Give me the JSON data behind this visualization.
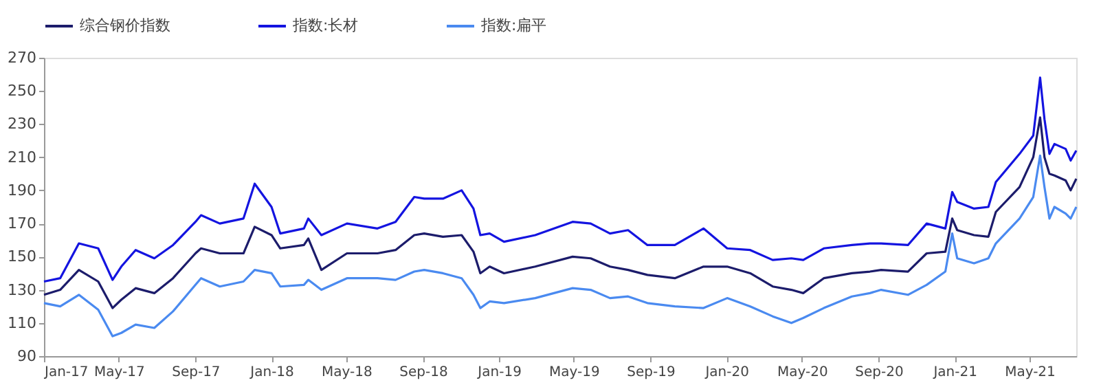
{
  "chart_data": {
    "type": "line",
    "x": [
      "2017-01-01",
      "2017-01-27",
      "2017-02-26",
      "2017-03-29",
      "2017-04-21",
      "2017-05-05",
      "2017-05-28",
      "2017-06-27",
      "2017-07-27",
      "2017-09-01",
      "2017-09-10",
      "2017-10-10",
      "2017-11-17",
      "2017-12-05",
      "2018-01-01",
      "2018-01-15",
      "2018-02-22",
      "2018-03-01",
      "2018-03-22",
      "2018-05-02",
      "2018-06-20",
      "2018-07-19",
      "2018-08-18",
      "2018-09-03",
      "2018-10-03",
      "2018-11-02",
      "2018-11-21",
      "2018-12-02",
      "2018-12-17",
      "2019-01-09",
      "2019-02-28",
      "2019-04-29",
      "2019-05-28",
      "2019-06-28",
      "2019-07-27",
      "2019-08-27",
      "2019-10-10",
      "2019-11-25",
      "2020-01-02",
      "2020-02-08",
      "2020-03-15",
      "2020-04-14",
      "2020-05-03",
      "2020-06-05",
      "2020-07-20",
      "2020-08-18",
      "2020-09-05",
      "2020-10-18",
      "2020-11-17",
      "2020-12-17",
      "2020-12-28",
      "2021-01-05",
      "2021-02-01",
      "2021-02-24",
      "2021-03-08",
      "2021-04-15",
      "2021-05-07",
      "2021-05-18",
      "2021-05-25",
      "2021-06-02",
      "2021-06-10",
      "2021-06-28",
      "2021-07-06",
      "2021-07-15"
    ],
    "series": [
      {
        "name": "综合钢价指数",
        "color": "#1c1c6b",
        "values": [
          127,
          130,
          142,
          135,
          119,
          124,
          131,
          128,
          137,
          152,
          155,
          152,
          152,
          168,
          163,
          155,
          157,
          161,
          142,
          152,
          152,
          154,
          163,
          164,
          162,
          163,
          153,
          140,
          144,
          140,
          144,
          150,
          149,
          144,
          142,
          139,
          137,
          144,
          144,
          140,
          132,
          130,
          128,
          137,
          140,
          141,
          142,
          141,
          152,
          153,
          173,
          166,
          163,
          162,
          177,
          192,
          210,
          234,
          210,
          200,
          199,
          196,
          190,
          197
        ]
      },
      {
        "name": "指数:长材",
        "color": "#1414e0",
        "values": [
          135,
          137,
          158,
          155,
          136,
          144,
          154,
          149,
          157,
          171,
          175,
          170,
          173,
          194,
          180,
          164,
          167,
          173,
          163,
          170,
          167,
          171,
          186,
          185,
          185,
          190,
          179,
          163,
          164,
          159,
          163,
          171,
          170,
          164,
          166,
          157,
          157,
          167,
          155,
          154,
          148,
          149,
          148,
          155,
          157,
          158,
          158,
          157,
          170,
          167,
          189,
          183,
          179,
          180,
          195,
          212,
          223,
          258,
          233,
          212,
          218,
          215,
          208,
          214
        ]
      },
      {
        "name": "指数:扁平",
        "color": "#4a8af0",
        "values": [
          122,
          120,
          127,
          118,
          102,
          104,
          109,
          107,
          117,
          133,
          137,
          132,
          135,
          142,
          140,
          132,
          133,
          136,
          130,
          137,
          137,
          136,
          141,
          142,
          140,
          137,
          127,
          119,
          123,
          122,
          125,
          131,
          130,
          125,
          126,
          122,
          120,
          119,
          125,
          120,
          114,
          110,
          113,
          119,
          126,
          128,
          130,
          127,
          133,
          141,
          164,
          149,
          146,
          149,
          158,
          173,
          186,
          211,
          192,
          173,
          180,
          176,
          173,
          180
        ]
      }
    ],
    "xlim": [
      "2017-01-01",
      "2021-07-15"
    ],
    "xticks": [
      {
        "value": "2017-01-01",
        "label": "Jan-17"
      },
      {
        "value": "2017-05-01",
        "label": "May-17"
      },
      {
        "value": "2017-09-01",
        "label": "Sep-17"
      },
      {
        "value": "2018-01-01",
        "label": "Jan-18"
      },
      {
        "value": "2018-05-01",
        "label": "May-18"
      },
      {
        "value": "2018-09-01",
        "label": "Sep-18"
      },
      {
        "value": "2019-01-01",
        "label": "Jan-19"
      },
      {
        "value": "2019-05-01",
        "label": "May-19"
      },
      {
        "value": "2019-09-01",
        "label": "Sep-19"
      },
      {
        "value": "2020-01-01",
        "label": "Jan-20"
      },
      {
        "value": "2020-05-01",
        "label": "May-20"
      },
      {
        "value": "2020-09-01",
        "label": "Sep-20"
      },
      {
        "value": "2021-01-01",
        "label": "Jan-21"
      },
      {
        "value": "2021-05-01",
        "label": "May-21"
      }
    ],
    "ylim": [
      90,
      270
    ],
    "yticks": [
      90,
      110,
      130,
      150,
      170,
      190,
      210,
      230,
      250,
      270
    ],
    "grid": false,
    "legend": "top"
  }
}
